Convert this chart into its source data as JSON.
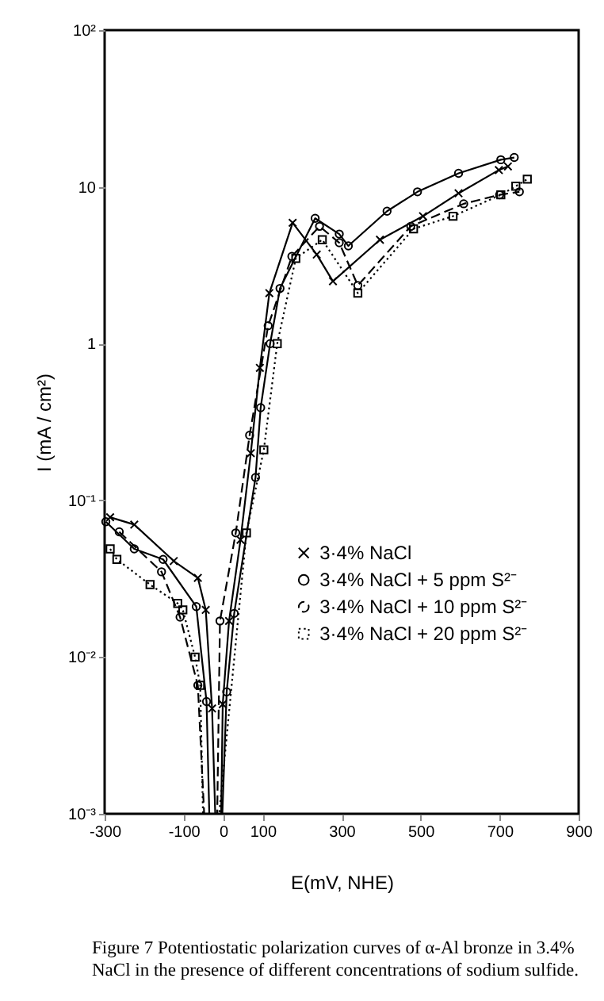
{
  "chart_data": {
    "type": "line",
    "xlabel": "E(mV, NHE)",
    "ylabel": "I (mA / cm²)",
    "annotations": [
      "Figure 7  Potentiostatic polarization curves of α-Al bronze in 3.4% NaCl in the presence of different concentrations of sodium sulfide."
    ],
    "xlim": [
      -300,
      900
    ],
    "xticks": [
      -300,
      -100,
      0,
      100,
      300,
      500,
      700,
      900
    ],
    "ylim": [
      0.001,
      100
    ],
    "yticks": [
      {
        "value": 0.001,
        "label": "10⁻³"
      },
      {
        "value": 0.01,
        "label": "10⁻²"
      },
      {
        "value": 0.1,
        "label": "10⁻¹"
      },
      {
        "value": 1,
        "label": "1"
      },
      {
        "value": 10,
        "label": "10"
      },
      {
        "value": 100,
        "label": "10²"
      }
    ],
    "log": "y",
    "grid": false,
    "legend": "bottom right",
    "series": [
      {
        "name": "3·4% NaCl",
        "color": "#000000",
        "marker": "cross",
        "line_style": "solid",
        "x": [
          -286,
          -225,
          -125,
          -64,
          -44,
          -28,
          -20,
          -5,
          -1,
          15,
          44,
          70,
          93,
          117,
          176,
          237,
          278,
          397,
          506,
          596,
          698,
          721
        ],
        "values": [
          0.078,
          0.07,
          0.041,
          0.032,
          0.02,
          0.0047,
          0.001,
          0.001,
          0.005,
          0.017,
          0.056,
          0.2,
          0.7,
          2.1,
          5.9,
          3.7,
          2.5,
          4.6,
          6.5,
          9.1,
          12.8,
          13.5
        ]
      },
      {
        "name": "3·4% NaCl + 5 ppm S²⁻",
        "color": "#000000",
        "marker": "circle",
        "line_style": "solid",
        "x": [
          -297,
          -225,
          -152,
          -68,
          -42,
          -35,
          -2,
          9,
          28,
          82,
          95,
          119,
          144,
          233,
          294,
          317,
          415,
          492,
          596,
          703,
          737
        ],
        "values": [
          0.073,
          0.049,
          0.042,
          0.021,
          0.0052,
          0.001,
          0.001,
          0.006,
          0.019,
          0.14,
          0.39,
          1.0,
          2.25,
          6.3,
          5.0,
          4.2,
          7.0,
          9.3,
          12.2,
          14.9,
          15.4
        ]
      },
      {
        "name": "3·4% NaCl + 10 ppm S²⁻",
        "color": "#000000",
        "marker": "circle",
        "line_style": "dashed",
        "x": [
          -263,
          -156,
          -109,
          -64,
          -48,
          -15,
          -8,
          32,
          67,
          114,
          174,
          244,
          294,
          341,
          475,
          609,
          700,
          750
        ],
        "values": [
          0.063,
          0.035,
          0.018,
          0.0066,
          0.001,
          0.001,
          0.017,
          0.062,
          0.26,
          1.3,
          3.6,
          5.6,
          4.4,
          2.35,
          5.6,
          7.8,
          8.9,
          9.3
        ]
      },
      {
        "name": "3·4% NaCl + 20 ppm S²⁻",
        "color": "#000000",
        "marker": "square",
        "line_style": "dotted",
        "x": [
          -286,
          -269,
          -185,
          -115,
          -102,
          -71,
          -58,
          -51,
          -10,
          59,
          103,
          137,
          184,
          251,
          341,
          482,
          582,
          703,
          741,
          770
        ],
        "values": [
          0.049,
          0.042,
          0.029,
          0.022,
          0.02,
          0.01,
          0.0066,
          0.001,
          0.001,
          0.062,
          0.21,
          1.0,
          3.5,
          4.6,
          2.1,
          5.4,
          6.5,
          8.9,
          10.1,
          11.2
        ]
      }
    ]
  }
}
